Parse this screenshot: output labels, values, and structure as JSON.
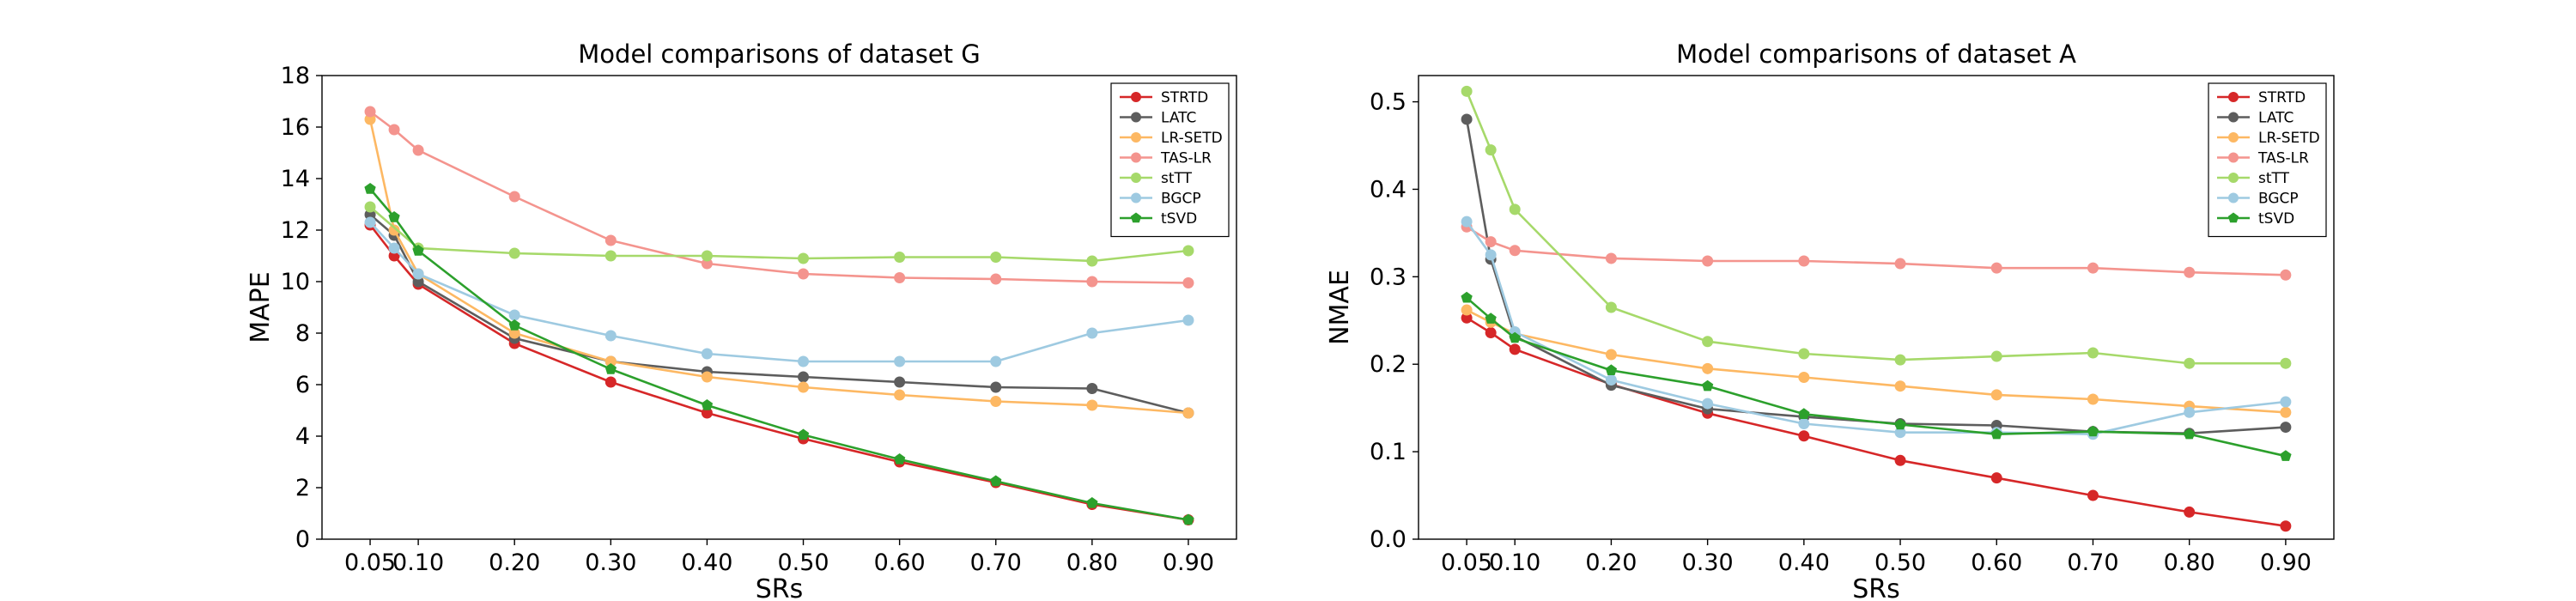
{
  "chart_data": [
    {
      "type": "line",
      "title": "Model comparisons of dataset G",
      "xlabel": "SRs",
      "ylabel": "MAPE",
      "xlim": [
        0.0,
        0.95
      ],
      "ylim": [
        0,
        18
      ],
      "xticks": [
        0.05,
        0.1,
        0.2,
        0.3,
        0.4,
        0.5,
        0.6,
        0.7,
        0.8,
        0.9
      ],
      "xtick_labels": [
        "0.05",
        "0.10",
        "0.20",
        "0.30",
        "0.40",
        "0.50",
        "0.60",
        "0.70",
        "0.80",
        "0.90"
      ],
      "yticks": [
        0,
        2,
        4,
        6,
        8,
        10,
        12,
        14,
        16,
        18
      ],
      "ytick_labels": [
        "0",
        "2",
        "4",
        "6",
        "8",
        "10",
        "12",
        "14",
        "16",
        "18"
      ],
      "legend_position": "top-right",
      "grid": false,
      "series": [
        {
          "name": "STRTD",
          "color": "#d62728",
          "marker": "circle",
          "x": [
            0.05,
            0.075,
            0.1,
            0.2,
            0.3,
            0.4,
            0.5,
            0.6,
            0.7,
            0.8,
            0.9
          ],
          "y": [
            12.2,
            11.0,
            9.9,
            7.6,
            6.1,
            4.9,
            3.9,
            3.0,
            2.2,
            1.35,
            0.75
          ]
        },
        {
          "name": "LATC",
          "color": "#5d5d5d",
          "marker": "circle",
          "x": [
            0.05,
            0.075,
            0.1,
            0.2,
            0.3,
            0.4,
            0.5,
            0.6,
            0.7,
            0.8,
            0.9
          ],
          "y": [
            12.6,
            11.8,
            10.0,
            7.8,
            6.9,
            6.5,
            6.3,
            6.1,
            5.9,
            5.85,
            4.9
          ]
        },
        {
          "name": "LR-SETD",
          "color": "#fdb863",
          "marker": "circle",
          "x": [
            0.05,
            0.075,
            0.1,
            0.2,
            0.3,
            0.4,
            0.5,
            0.6,
            0.7,
            0.8,
            0.9
          ],
          "y": [
            16.3,
            12.0,
            10.3,
            8.0,
            6.9,
            6.3,
            5.9,
            5.6,
            5.35,
            5.2,
            4.9
          ]
        },
        {
          "name": "TAS-LR",
          "color": "#f4948e",
          "marker": "circle",
          "x": [
            0.05,
            0.075,
            0.1,
            0.2,
            0.3,
            0.4,
            0.5,
            0.6,
            0.7,
            0.8,
            0.9
          ],
          "y": [
            16.6,
            15.9,
            15.1,
            13.3,
            11.6,
            10.7,
            10.3,
            10.15,
            10.1,
            10.0,
            9.95
          ]
        },
        {
          "name": "stTT",
          "color": "#a6d96a",
          "marker": "circle",
          "x": [
            0.05,
            0.1,
            0.2,
            0.3,
            0.4,
            0.5,
            0.6,
            0.7,
            0.8,
            0.9
          ],
          "y": [
            12.9,
            11.3,
            11.1,
            11.0,
            11.0,
            10.9,
            10.95,
            10.95,
            10.8,
            11.2
          ]
        },
        {
          "name": "BGCP",
          "color": "#9ecae1",
          "marker": "circle",
          "x": [
            0.05,
            0.075,
            0.1,
            0.2,
            0.3,
            0.4,
            0.5,
            0.6,
            0.7,
            0.8,
            0.9
          ],
          "y": [
            12.3,
            11.3,
            10.3,
            8.7,
            7.9,
            7.2,
            6.9,
            6.9,
            6.9,
            8.0,
            8.5
          ]
        },
        {
          "name": "tSVD",
          "color": "#2ca02c",
          "marker": "pentagon",
          "x": [
            0.05,
            0.075,
            0.1,
            0.2,
            0.3,
            0.4,
            0.5,
            0.6,
            0.7,
            0.8,
            0.9
          ],
          "y": [
            13.6,
            12.5,
            11.2,
            8.3,
            6.6,
            5.2,
            4.05,
            3.1,
            2.25,
            1.4,
            0.75
          ]
        }
      ]
    },
    {
      "type": "line",
      "title": "Model comparisons of dataset A",
      "xlabel": "SRs",
      "ylabel": "NMAE",
      "xlim": [
        0.0,
        0.95
      ],
      "ylim": [
        0,
        0.53
      ],
      "xticks": [
        0.05,
        0.1,
        0.2,
        0.3,
        0.4,
        0.5,
        0.6,
        0.7,
        0.8,
        0.9
      ],
      "xtick_labels": [
        "0.05",
        "0.10",
        "0.20",
        "0.30",
        "0.40",
        "0.50",
        "0.60",
        "0.70",
        "0.80",
        "0.90"
      ],
      "yticks": [
        0.0,
        0.1,
        0.2,
        0.3,
        0.4,
        0.5
      ],
      "ytick_labels": [
        "0.0",
        "0.1",
        "0.2",
        "0.3",
        "0.4",
        "0.5"
      ],
      "legend_position": "top-right",
      "grid": false,
      "series": [
        {
          "name": "STRTD",
          "color": "#d62728",
          "marker": "circle",
          "x": [
            0.05,
            0.075,
            0.1,
            0.2,
            0.3,
            0.4,
            0.5,
            0.6,
            0.7,
            0.8,
            0.9
          ],
          "y": [
            0.253,
            0.236,
            0.217,
            0.177,
            0.144,
            0.118,
            0.09,
            0.07,
            0.05,
            0.031,
            0.015
          ]
        },
        {
          "name": "LATC",
          "color": "#5d5d5d",
          "marker": "circle",
          "x": [
            0.05,
            0.075,
            0.1,
            0.2,
            0.3,
            0.4,
            0.5,
            0.6,
            0.7,
            0.8,
            0.9
          ],
          "y": [
            0.48,
            0.32,
            0.232,
            0.176,
            0.149,
            0.14,
            0.132,
            0.13,
            0.123,
            0.121,
            0.128
          ]
        },
        {
          "name": "LR-SETD",
          "color": "#fdb863",
          "marker": "circle",
          "x": [
            0.05,
            0.075,
            0.1,
            0.2,
            0.3,
            0.4,
            0.5,
            0.6,
            0.7,
            0.8,
            0.9
          ],
          "y": [
            0.262,
            0.248,
            0.235,
            0.211,
            0.195,
            0.185,
            0.175,
            0.165,
            0.16,
            0.152,
            0.145
          ]
        },
        {
          "name": "TAS-LR",
          "color": "#f4948e",
          "marker": "circle",
          "x": [
            0.05,
            0.075,
            0.1,
            0.2,
            0.3,
            0.4,
            0.5,
            0.6,
            0.7,
            0.8,
            0.9
          ],
          "y": [
            0.357,
            0.34,
            0.33,
            0.321,
            0.318,
            0.318,
            0.315,
            0.31,
            0.31,
            0.305,
            0.302
          ]
        },
        {
          "name": "stTT",
          "color": "#a6d96a",
          "marker": "circle",
          "x": [
            0.05,
            0.075,
            0.1,
            0.2,
            0.3,
            0.4,
            0.5,
            0.6,
            0.7,
            0.8,
            0.9
          ],
          "y": [
            0.512,
            0.445,
            0.377,
            0.265,
            0.226,
            0.212,
            0.205,
            0.209,
            0.213,
            0.201,
            0.201
          ]
        },
        {
          "name": "BGCP",
          "color": "#9ecae1",
          "marker": "circle",
          "x": [
            0.05,
            0.075,
            0.1,
            0.2,
            0.3,
            0.4,
            0.5,
            0.6,
            0.7,
            0.8,
            0.9
          ],
          "y": [
            0.363,
            0.325,
            0.237,
            0.182,
            0.155,
            0.132,
            0.122,
            0.122,
            0.12,
            0.145,
            0.157
          ]
        },
        {
          "name": "tSVD",
          "color": "#2ca02c",
          "marker": "pentagon",
          "x": [
            0.05,
            0.075,
            0.1,
            0.2,
            0.3,
            0.4,
            0.5,
            0.6,
            0.7,
            0.8,
            0.9
          ],
          "y": [
            0.276,
            0.252,
            0.23,
            0.193,
            0.175,
            0.143,
            0.131,
            0.12,
            0.123,
            0.12,
            0.095
          ]
        }
      ]
    }
  ]
}
